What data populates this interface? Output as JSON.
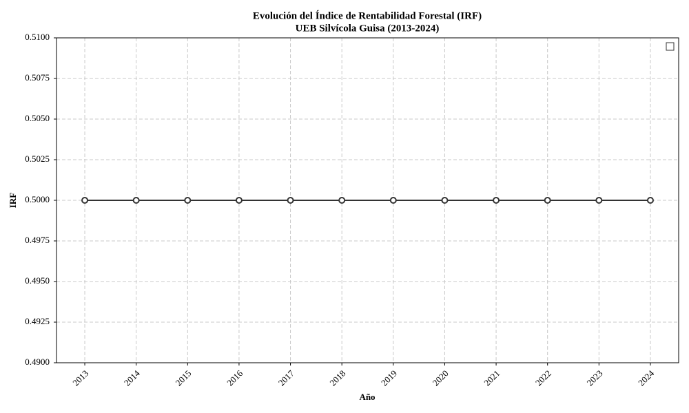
{
  "chart_data": {
    "type": "line",
    "title": "Evolución del Índice de Rentabilidad Forestal (IRF)",
    "subtitle": "UEB Silvícola Guisa (2013-2024)",
    "x_label": "Año",
    "y_label": "IRF",
    "x": [
      2013,
      2014,
      2015,
      2016,
      2017,
      2018,
      2019,
      2020,
      2021,
      2022,
      2023,
      2024
    ],
    "series": [
      {
        "color": "#333333",
        "values": [
          0.5,
          0.5,
          0.5,
          0.5,
          0.5,
          0.5,
          0.5,
          0.5,
          0.5,
          0.5,
          0.5,
          0.5
        ]
      }
    ],
    "xlim": [
      2012.45,
      2024.55
    ],
    "xticks": [
      2013,
      2014,
      2015,
      2016,
      2017,
      2018,
      2019,
      2020,
      2021,
      2022,
      2023,
      2024
    ],
    "ylim": [
      0.49,
      0.51
    ],
    "yticks": [
      {
        "value": 0.49,
        "label": "0.4900"
      },
      {
        "value": 0.4925,
        "label": "0.4925"
      },
      {
        "value": 0.495,
        "label": "0.4950"
      },
      {
        "value": 0.4975,
        "label": "0.4975"
      },
      {
        "value": 0.5,
        "label": "0.5000"
      },
      {
        "value": 0.5025,
        "label": "0.5025"
      },
      {
        "value": 0.505,
        "label": "0.5050"
      },
      {
        "value": 0.5075,
        "label": "0.5075"
      },
      {
        "value": 0.51,
        "label": "0.5100"
      }
    ],
    "grid": true
  }
}
